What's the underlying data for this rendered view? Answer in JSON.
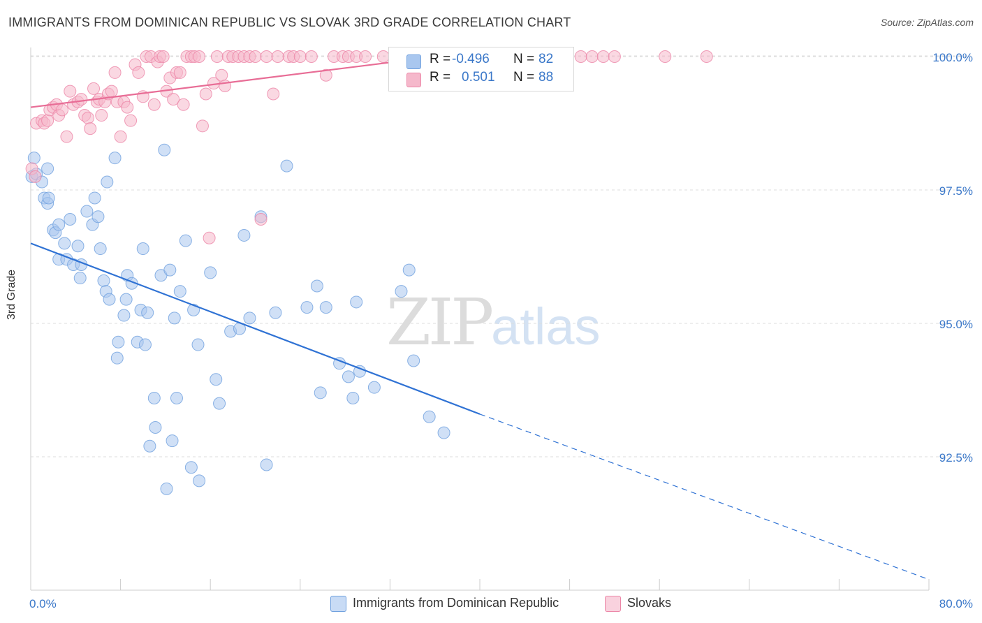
{
  "title": "IMMIGRANTS FROM DOMINICAN REPUBLIC VS SLOVAK 3RD GRADE CORRELATION CHART",
  "source": "Source: ZipAtlas.com",
  "watermark": {
    "zip": "ZIP",
    "atlas": "atlas"
  },
  "legend": {
    "r_label": "R =",
    "n_label": "N =",
    "rows": [
      {
        "r": "-0.496",
        "n": "82",
        "color": "#a9c7ef"
      },
      {
        "r": "0.501",
        "n": "88",
        "color": "#f5b8cb"
      }
    ]
  },
  "chart_data": {
    "type": "scatter",
    "title": "IMMIGRANTS FROM DOMINICAN REPUBLIC VS SLOVAK 3RD GRADE CORRELATION CHART",
    "xlabel": "",
    "ylabel": "3rd Grade",
    "xlim": [
      0,
      80
    ],
    "ylim": [
      90.5,
      100.5
    ],
    "x_tick_labels": [
      "0.0%",
      "80.0%"
    ],
    "y_ticks": [
      92.5,
      95.0,
      97.5,
      100.0
    ],
    "y_tick_labels": [
      "92.5%",
      "95.0%",
      "97.5%",
      "100.0%"
    ],
    "grid": true,
    "legend_placement": "top-center",
    "series": [
      {
        "name": "Immigrants from Dominican Republic",
        "color": "#6fa0de",
        "fill": "#a9c7ef",
        "trend": {
          "x0": 0,
          "y0": 96.5,
          "x1": 40,
          "y1": 93.3,
          "dashed_to": [
            80,
            90.2
          ]
        },
        "points": [
          [
            0.1,
            97.75
          ],
          [
            0.3,
            98.1
          ],
          [
            0.5,
            97.8
          ],
          [
            1.0,
            97.65
          ],
          [
            1.2,
            97.35
          ],
          [
            1.5,
            97.25
          ],
          [
            1.6,
            97.35
          ],
          [
            2.0,
            96.75
          ],
          [
            2.2,
            96.7
          ],
          [
            2.5,
            96.85
          ],
          [
            3.0,
            96.5
          ],
          [
            3.5,
            96.95
          ],
          [
            2.5,
            96.2
          ],
          [
            3.2,
            96.2
          ],
          [
            3.8,
            96.1
          ],
          [
            4.2,
            96.45
          ],
          [
            4.5,
            96.1
          ],
          [
            4.4,
            95.85
          ],
          [
            5.0,
            97.1
          ],
          [
            5.5,
            96.85
          ],
          [
            5.7,
            97.35
          ],
          [
            6.0,
            97.0
          ],
          [
            6.2,
            96.4
          ],
          [
            6.5,
            95.8
          ],
          [
            6.7,
            95.6
          ],
          [
            7.0,
            95.45
          ],
          [
            6.8,
            97.65
          ],
          [
            7.5,
            98.1
          ],
          [
            7.8,
            94.65
          ],
          [
            7.7,
            94.35
          ],
          [
            8.3,
            95.15
          ],
          [
            8.5,
            95.45
          ],
          [
            8.6,
            95.9
          ],
          [
            9.0,
            95.75
          ],
          [
            9.5,
            94.65
          ],
          [
            9.8,
            95.25
          ],
          [
            10.0,
            96.4
          ],
          [
            10.2,
            94.6
          ],
          [
            10.4,
            95.2
          ],
          [
            10.6,
            92.7
          ],
          [
            11.1,
            93.05
          ],
          [
            11.0,
            93.6
          ],
          [
            11.6,
            95.9
          ],
          [
            11.9,
            98.25
          ],
          [
            12.1,
            91.9
          ],
          [
            12.4,
            96.0
          ],
          [
            12.6,
            92.8
          ],
          [
            12.8,
            95.1
          ],
          [
            13.0,
            93.6
          ],
          [
            13.3,
            95.6
          ],
          [
            13.8,
            96.55
          ],
          [
            14.3,
            92.3
          ],
          [
            14.5,
            95.25
          ],
          [
            14.9,
            94.6
          ],
          [
            15.0,
            92.05
          ],
          [
            16.0,
            95.95
          ],
          [
            16.5,
            93.95
          ],
          [
            16.8,
            93.5
          ],
          [
            17.8,
            94.85
          ],
          [
            18.6,
            94.9
          ],
          [
            19.0,
            96.65
          ],
          [
            19.5,
            95.1
          ],
          [
            20.5,
            97.0
          ],
          [
            21.0,
            92.35
          ],
          [
            21.8,
            95.2
          ],
          [
            22.8,
            97.95
          ],
          [
            24.6,
            95.3
          ],
          [
            25.5,
            95.7
          ],
          [
            25.8,
            93.7
          ],
          [
            26.3,
            95.3
          ],
          [
            27.5,
            94.25
          ],
          [
            28.3,
            94.0
          ],
          [
            28.7,
            93.6
          ],
          [
            29.0,
            95.4
          ],
          [
            29.3,
            94.1
          ],
          [
            30.6,
            93.8
          ],
          [
            33.0,
            95.6
          ],
          [
            33.7,
            96.0
          ],
          [
            34.1,
            94.3
          ],
          [
            35.5,
            93.25
          ],
          [
            36.8,
            92.95
          ],
          [
            1.5,
            97.9
          ]
        ]
      },
      {
        "name": "Slovaks",
        "color": "#ec86a7",
        "fill": "#f5b8cb",
        "trend": {
          "x0": 0,
          "y0": 99.05,
          "x1": 40,
          "y1": 100.1
        },
        "points": [
          [
            0.1,
            97.9
          ],
          [
            0.4,
            97.75
          ],
          [
            0.5,
            98.75
          ],
          [
            1.0,
            98.8
          ],
          [
            1.2,
            98.75
          ],
          [
            1.5,
            98.8
          ],
          [
            1.7,
            99.0
          ],
          [
            2.0,
            99.05
          ],
          [
            2.3,
            99.1
          ],
          [
            2.5,
            98.9
          ],
          [
            2.8,
            99.0
          ],
          [
            3.2,
            98.5
          ],
          [
            3.5,
            99.35
          ],
          [
            3.8,
            99.1
          ],
          [
            4.2,
            99.15
          ],
          [
            4.5,
            99.2
          ],
          [
            4.8,
            98.9
          ],
          [
            5.1,
            98.85
          ],
          [
            5.3,
            98.65
          ],
          [
            5.6,
            99.4
          ],
          [
            5.9,
            99.15
          ],
          [
            6.1,
            99.2
          ],
          [
            6.3,
            98.9
          ],
          [
            6.6,
            99.15
          ],
          [
            6.9,
            99.3
          ],
          [
            7.2,
            99.35
          ],
          [
            7.5,
            99.7
          ],
          [
            7.7,
            99.15
          ],
          [
            8.0,
            98.5
          ],
          [
            8.3,
            99.15
          ],
          [
            8.6,
            99.05
          ],
          [
            8.9,
            98.8
          ],
          [
            9.3,
            99.85
          ],
          [
            9.6,
            99.7
          ],
          [
            10.0,
            99.25
          ],
          [
            10.3,
            100.0
          ],
          [
            10.7,
            100.0
          ],
          [
            11.0,
            99.1
          ],
          [
            11.3,
            99.9
          ],
          [
            11.5,
            100.0
          ],
          [
            11.8,
            100.0
          ],
          [
            12.1,
            99.35
          ],
          [
            12.4,
            99.6
          ],
          [
            12.7,
            99.2
          ],
          [
            13.0,
            99.7
          ],
          [
            13.3,
            99.7
          ],
          [
            13.6,
            99.1
          ],
          [
            13.9,
            100.0
          ],
          [
            14.3,
            100.0
          ],
          [
            14.6,
            100.0
          ],
          [
            15.0,
            100.0
          ],
          [
            15.3,
            98.7
          ],
          [
            15.6,
            99.3
          ],
          [
            15.9,
            96.6
          ],
          [
            16.3,
            99.5
          ],
          [
            16.6,
            100.0
          ],
          [
            17.0,
            99.65
          ],
          [
            17.3,
            99.45
          ],
          [
            17.6,
            100.0
          ],
          [
            18.0,
            100.0
          ],
          [
            18.5,
            100.0
          ],
          [
            19.0,
            100.0
          ],
          [
            19.5,
            100.0
          ],
          [
            20.0,
            100.0
          ],
          [
            20.5,
            96.95
          ],
          [
            21.0,
            100.0
          ],
          [
            21.6,
            99.3
          ],
          [
            22.0,
            100.0
          ],
          [
            23.0,
            100.0
          ],
          [
            23.4,
            100.0
          ],
          [
            24.0,
            100.0
          ],
          [
            25.0,
            100.0
          ],
          [
            26.3,
            99.65
          ],
          [
            27.0,
            100.0
          ],
          [
            27.8,
            100.0
          ],
          [
            28.3,
            100.0
          ],
          [
            29.0,
            100.0
          ],
          [
            29.8,
            100.0
          ],
          [
            31.4,
            100.0
          ],
          [
            35.0,
            100.0
          ],
          [
            37.5,
            100.0
          ],
          [
            41.5,
            100.0
          ],
          [
            49.0,
            100.0
          ],
          [
            50.0,
            100.0
          ],
          [
            51.0,
            100.0
          ],
          [
            52.0,
            100.0
          ],
          [
            56.5,
            100.0
          ],
          [
            60.2,
            100.0
          ]
        ]
      }
    ]
  }
}
